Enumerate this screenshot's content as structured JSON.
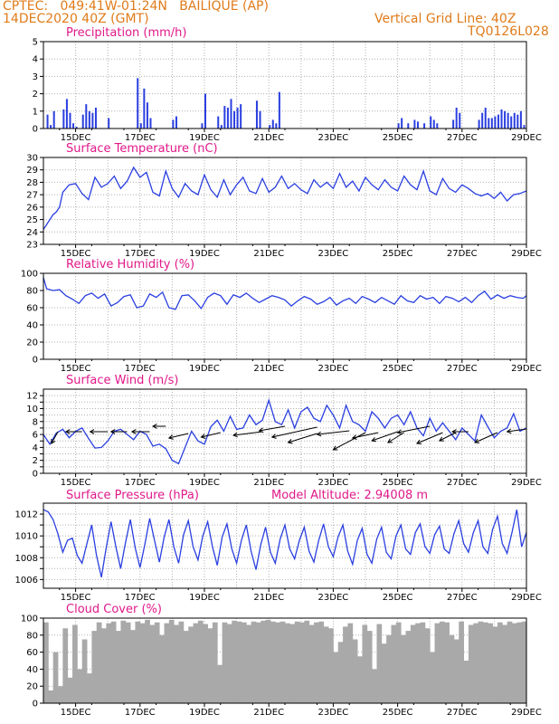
{
  "header": {
    "station": "CPTEC:   049:41W-01:24N   BAILIQUE (AP)",
    "date": "14DEC2020 40Z (GMT)",
    "grid_line": "Vertical Grid Line: 40Z",
    "code": "TQ0126L028"
  },
  "colors": {
    "header": "#e07b1a",
    "title": "#e0198a",
    "line": "#2a3fe0",
    "bar": "#2a3fe0",
    "cloud": "#a9a9a9"
  },
  "chart_data": [
    {
      "id": "precip",
      "type": "bar",
      "title": "Precipitation (mm/h)",
      "xlabel": "",
      "ylabel": "",
      "ylim": [
        0,
        5
      ],
      "yticks": [
        0,
        1,
        2,
        3,
        4,
        5
      ],
      "xticks": [
        "15DEC",
        "17DEC",
        "19DEC",
        "21DEC",
        "23DEC",
        "25DEC",
        "27DEC",
        "29DEC"
      ],
      "xrange": [
        14.0,
        29.0
      ],
      "grid": true,
      "x": [
        14.1,
        14.2,
        14.3,
        14.6,
        14.7,
        14.8,
        14.9,
        15.0,
        15.2,
        15.3,
        15.4,
        15.5,
        15.6,
        16.0,
        16.9,
        17.0,
        17.1,
        17.2,
        17.3,
        18.0,
        18.1,
        18.9,
        19.0,
        19.4,
        19.5,
        19.6,
        19.7,
        19.8,
        19.9,
        20.0,
        20.1,
        20.6,
        20.7,
        21.0,
        21.1,
        21.2,
        21.3,
        25.0,
        25.1,
        25.3,
        25.5,
        25.6,
        25.8,
        26.0,
        26.1,
        26.2,
        26.7,
        26.8,
        26.9,
        27.5,
        27.6,
        27.7,
        27.8,
        27.9,
        28.0,
        28.1,
        28.2,
        28.3,
        28.4,
        28.5,
        28.6,
        28.7,
        28.8,
        28.9
      ],
      "values": [
        0.8,
        0.2,
        1.0,
        1.1,
        1.7,
        0.9,
        0.3,
        0.1,
        0.8,
        1.4,
        1.0,
        0.9,
        1.2,
        0.6,
        2.9,
        0.3,
        2.3,
        1.5,
        0.6,
        0.5,
        0.7,
        0.3,
        2.0,
        0.7,
        0.2,
        1.3,
        1.2,
        1.7,
        1.0,
        1.2,
        1.4,
        1.6,
        1.0,
        0.2,
        0.5,
        0.3,
        2.1,
        0.3,
        0.6,
        0.3,
        0.5,
        0.4,
        0.3,
        0.7,
        0.5,
        0.3,
        0.5,
        1.2,
        0.9,
        0.5,
        0.9,
        1.2,
        0.6,
        0.6,
        0.7,
        0.8,
        1.1,
        1.0,
        0.9,
        0.7,
        0.9,
        0.8,
        1.0,
        0.2
      ]
    },
    {
      "id": "temp",
      "type": "line",
      "title": "Surface Temperature (nC)",
      "xlabel": "",
      "ylabel": "",
      "ylim": [
        23,
        30
      ],
      "yticks": [
        23,
        24,
        25,
        26,
        27,
        28,
        29,
        30
      ],
      "xticks": [
        "15DEC",
        "17DEC",
        "19DEC",
        "21DEC",
        "23DEC",
        "25DEC",
        "27DEC",
        "29DEC"
      ],
      "xrange": [
        14.0,
        29.0
      ],
      "grid": true,
      "x": [
        14.0,
        14.1,
        14.2,
        14.3,
        14.4,
        14.5,
        14.6,
        14.8,
        15.0,
        15.2,
        15.4,
        15.6,
        15.8,
        16.0,
        16.2,
        16.4,
        16.6,
        16.8,
        17.0,
        17.2,
        17.4,
        17.6,
        17.8,
        18.0,
        18.2,
        18.4,
        18.6,
        18.8,
        19.0,
        19.2,
        19.4,
        19.6,
        19.8,
        20.0,
        20.2,
        20.4,
        20.6,
        20.8,
        21.0,
        21.2,
        21.4,
        21.6,
        21.8,
        22.0,
        22.2,
        22.4,
        22.6,
        22.8,
        23.0,
        23.2,
        23.4,
        23.6,
        23.8,
        24.0,
        24.2,
        24.4,
        24.6,
        24.8,
        25.0,
        25.2,
        25.4,
        25.6,
        25.8,
        26.0,
        26.2,
        26.4,
        26.6,
        26.8,
        27.0,
        27.2,
        27.4,
        27.6,
        27.8,
        28.0,
        28.2,
        28.4,
        28.6,
        28.8,
        29.0
      ],
      "values": [
        24.2,
        24.6,
        25.0,
        25.4,
        25.6,
        26.0,
        27.2,
        27.8,
        27.9,
        27.1,
        26.6,
        28.4,
        27.6,
        27.9,
        28.5,
        27.5,
        28.1,
        29.2,
        28.4,
        28.8,
        27.2,
        26.9,
        28.9,
        27.5,
        26.8,
        27.9,
        27.3,
        27.0,
        28.6,
        27.4,
        26.8,
        28.2,
        27.0,
        27.8,
        28.4,
        27.3,
        27.1,
        28.3,
        27.2,
        27.6,
        28.5,
        27.5,
        27.9,
        27.4,
        27.1,
        28.2,
        27.6,
        28.0,
        27.5,
        28.7,
        27.6,
        28.1,
        27.3,
        28.4,
        27.8,
        27.4,
        28.2,
        27.6,
        27.3,
        28.5,
        27.8,
        27.4,
        28.9,
        27.3,
        27.0,
        28.3,
        27.5,
        27.2,
        27.8,
        27.5,
        27.1,
        26.9,
        27.1,
        26.7,
        27.2,
        26.5,
        27.0,
        27.1,
        27.3
      ]
    },
    {
      "id": "rh",
      "type": "line",
      "title": "Relative Humidity (%)",
      "xlabel": "",
      "ylabel": "",
      "ylim": [
        0,
        100
      ],
      "yticks": [
        0,
        20,
        40,
        60,
        80,
        100
      ],
      "xticks": [
        "15DEC",
        "17DEC",
        "19DEC",
        "21DEC",
        "23DEC",
        "25DEC",
        "27DEC",
        "29DEC"
      ],
      "xrange": [
        14.0,
        29.0
      ],
      "grid": true,
      "x": [
        14.0,
        14.1,
        14.3,
        14.5,
        14.7,
        14.9,
        15.1,
        15.3,
        15.5,
        15.7,
        15.9,
        16.1,
        16.3,
        16.5,
        16.7,
        16.9,
        17.1,
        17.3,
        17.5,
        17.7,
        17.9,
        18.1,
        18.3,
        18.5,
        18.7,
        18.9,
        19.1,
        19.3,
        19.5,
        19.7,
        19.9,
        20.1,
        20.3,
        20.5,
        20.7,
        20.9,
        21.1,
        21.3,
        21.5,
        21.7,
        21.9,
        22.1,
        22.3,
        22.5,
        22.7,
        22.9,
        23.1,
        23.3,
        23.5,
        23.7,
        23.9,
        24.1,
        24.3,
        24.5,
        24.7,
        24.9,
        25.1,
        25.3,
        25.5,
        25.7,
        25.9,
        26.1,
        26.3,
        26.5,
        26.7,
        26.9,
        27.1,
        27.3,
        27.5,
        27.7,
        27.9,
        28.1,
        28.3,
        28.5,
        28.7,
        28.9,
        29.0
      ],
      "values": [
        95,
        82,
        80,
        81,
        74,
        70,
        65,
        74,
        77,
        71,
        76,
        62,
        66,
        73,
        75,
        60,
        62,
        76,
        72,
        78,
        60,
        58,
        74,
        75,
        68,
        59,
        72,
        77,
        74,
        64,
        75,
        72,
        77,
        71,
        66,
        70,
        74,
        72,
        69,
        62,
        68,
        73,
        70,
        64,
        67,
        72,
        63,
        68,
        71,
        65,
        73,
        70,
        66,
        72,
        68,
        64,
        74,
        68,
        66,
        74,
        70,
        72,
        65,
        73,
        71,
        67,
        72,
        66,
        74,
        79,
        70,
        75,
        71,
        74,
        72,
        71,
        74
      ]
    },
    {
      "id": "wind",
      "type": "line",
      "title": "Surface Wind (m/s)",
      "xlabel": "",
      "ylabel": "",
      "ylim": [
        0,
        13
      ],
      "yticks": [
        0,
        1,
        2,
        3,
        4,
        5,
        6,
        7,
        8,
        9,
        10,
        11,
        12
      ],
      "ytick_labels": [
        "0",
        "",
        "2",
        "",
        "4",
        "",
        "6",
        "",
        "8",
        "",
        "10",
        "",
        "12"
      ],
      "xticks": [
        "15DEC",
        "17DEC",
        "19DEC",
        "21DEC",
        "23DEC",
        "25DEC",
        "27DEC",
        "29DEC"
      ],
      "xrange": [
        14.0,
        29.0
      ],
      "grid": true,
      "x": [
        14.0,
        14.2,
        14.4,
        14.6,
        14.8,
        15.0,
        15.2,
        15.4,
        15.6,
        15.8,
        16.0,
        16.2,
        16.4,
        16.6,
        16.8,
        17.0,
        17.2,
        17.4,
        17.6,
        17.8,
        18.0,
        18.2,
        18.4,
        18.6,
        18.8,
        19.0,
        19.2,
        19.4,
        19.6,
        19.8,
        20.0,
        20.2,
        20.4,
        20.6,
        20.8,
        21.0,
        21.2,
        21.4,
        21.6,
        21.8,
        22.0,
        22.2,
        22.4,
        22.6,
        22.8,
        23.0,
        23.2,
        23.4,
        23.6,
        23.8,
        24.0,
        24.2,
        24.4,
        24.6,
        24.8,
        25.0,
        25.2,
        25.4,
        25.6,
        25.8,
        26.0,
        26.2,
        26.4,
        26.6,
        26.8,
        27.0,
        27.2,
        27.4,
        27.6,
        27.8,
        28.0,
        28.2,
        28.4,
        28.6,
        28.8,
        29.0
      ],
      "values": [
        6.0,
        4.5,
        6.2,
        6.8,
        5.5,
        6.5,
        7.0,
        5.4,
        3.9,
        4.0,
        5.0,
        6.5,
        6.8,
        6.0,
        5.2,
        6.5,
        6.0,
        4.2,
        4.5,
        3.8,
        2.0,
        1.5,
        4.0,
        6.5,
        5.0,
        4.5,
        7.2,
        8.2,
        6.5,
        8.8,
        6.8,
        7.0,
        9.0,
        7.5,
        8.2,
        11.3,
        8.0,
        7.5,
        9.8,
        7.0,
        9.5,
        10.2,
        8.5,
        8.0,
        10.5,
        9.0,
        7.0,
        10.5,
        8.0,
        7.5,
        6.5,
        9.5,
        8.5,
        7.0,
        8.5,
        9.0,
        7.5,
        9.5,
        7.0,
        5.8,
        8.5,
        6.5,
        7.8,
        6.5,
        5.2,
        7.0,
        6.0,
        5.0,
        9.0,
        7.2,
        5.5,
        6.5,
        7.0,
        9.2,
        6.5,
        7.0
      ],
      "arrows_label": "wind direction vectors"
    },
    {
      "id": "pressure",
      "type": "line",
      "title": "Surface Pressure (hPa)",
      "annotation": "Model Altitude: 2.94008 m",
      "xlabel": "",
      "ylabel": "",
      "ylim": [
        1005.2,
        1013.0
      ],
      "yticks": [
        1006,
        1007,
        1008,
        1009,
        1010,
        1011,
        1012
      ],
      "ytick_labels": [
        "1006",
        "",
        "1008",
        "",
        "1010",
        "",
        "1012"
      ],
      "xticks": [
        "15DEC",
        "17DEC",
        "19DEC",
        "21DEC",
        "23DEC",
        "25DEC",
        "27DEC",
        "29DEC"
      ],
      "xrange": [
        14.0,
        29.0
      ],
      "grid": true,
      "x": [
        14.0,
        14.15,
        14.3,
        14.45,
        14.6,
        14.75,
        14.9,
        15.05,
        15.2,
        15.35,
        15.5,
        15.65,
        15.8,
        15.95,
        16.1,
        16.25,
        16.4,
        16.55,
        16.7,
        16.85,
        17.0,
        17.15,
        17.3,
        17.45,
        17.6,
        17.75,
        17.9,
        18.05,
        18.2,
        18.35,
        18.5,
        18.65,
        18.8,
        18.95,
        19.1,
        19.25,
        19.4,
        19.55,
        19.7,
        19.85,
        20.0,
        20.15,
        20.3,
        20.45,
        20.6,
        20.75,
        20.9,
        21.05,
        21.2,
        21.35,
        21.5,
        21.65,
        21.8,
        21.95,
        22.1,
        22.25,
        22.4,
        22.55,
        22.7,
        22.85,
        23.0,
        23.15,
        23.3,
        23.45,
        23.6,
        23.75,
        23.9,
        24.05,
        24.2,
        24.35,
        24.5,
        24.65,
        24.8,
        24.95,
        25.1,
        25.25,
        25.4,
        25.55,
        25.7,
        25.85,
        26.0,
        26.15,
        26.3,
        26.45,
        26.6,
        26.75,
        26.9,
        27.05,
        27.2,
        27.35,
        27.5,
        27.65,
        27.8,
        27.95,
        28.1,
        28.25,
        28.4,
        28.55,
        28.7,
        28.85,
        29.0
      ],
      "values": [
        1012.4,
        1012.2,
        1011.5,
        1010.2,
        1008.5,
        1009.6,
        1009.8,
        1008.2,
        1007.5,
        1009.3,
        1011.0,
        1008.2,
        1006.2,
        1008.9,
        1011.3,
        1009.0,
        1007.0,
        1009.4,
        1011.5,
        1008.9,
        1007.1,
        1009.2,
        1011.6,
        1009.6,
        1007.6,
        1009.9,
        1011.5,
        1009.0,
        1007.5,
        1010.1,
        1011.4,
        1009.0,
        1007.8,
        1010.0,
        1011.3,
        1009.0,
        1007.3,
        1009.9,
        1011.1,
        1008.8,
        1007.5,
        1009.6,
        1011.0,
        1008.6,
        1006.9,
        1009.2,
        1010.8,
        1008.5,
        1007.5,
        1009.7,
        1011.0,
        1008.8,
        1007.9,
        1009.6,
        1010.8,
        1008.6,
        1007.6,
        1009.6,
        1011.1,
        1009.0,
        1008.1,
        1009.9,
        1011.0,
        1008.6,
        1007.4,
        1009.6,
        1010.7,
        1008.3,
        1007.5,
        1009.7,
        1010.8,
        1008.5,
        1007.9,
        1010.0,
        1011.0,
        1008.8,
        1008.3,
        1010.3,
        1011.1,
        1009.0,
        1008.4,
        1010.1,
        1010.9,
        1008.8,
        1008.4,
        1010.2,
        1011.4,
        1009.3,
        1008.5,
        1010.3,
        1011.4,
        1009.0,
        1008.4,
        1010.6,
        1011.8,
        1009.3,
        1008.4,
        1010.3,
        1012.4,
        1009.0,
        1010.3
      ]
    },
    {
      "id": "cloud",
      "type": "bar",
      "title": "Cloud Cover (%)",
      "xlabel": "",
      "ylabel": "",
      "ylim": [
        0,
        100
      ],
      "yticks": [
        0,
        20,
        40,
        60,
        80,
        100
      ],
      "xticks": [
        "15DEC",
        "17DEC",
        "19DEC",
        "21DEC",
        "23DEC",
        "25DEC",
        "27DEC",
        "29DEC"
      ],
      "xrange": [
        14.0,
        29.0
      ],
      "grid": true,
      "x": [
        14.0,
        14.15,
        14.3,
        14.45,
        14.6,
        14.75,
        14.9,
        15.05,
        15.2,
        15.35,
        15.5,
        15.65,
        15.8,
        15.95,
        16.1,
        16.25,
        16.4,
        16.55,
        16.7,
        16.85,
        17.0,
        17.15,
        17.3,
        17.45,
        17.6,
        17.75,
        17.9,
        18.05,
        18.2,
        18.35,
        18.5,
        18.65,
        18.8,
        18.95,
        19.1,
        19.25,
        19.4,
        19.55,
        19.7,
        19.85,
        20.0,
        20.15,
        20.3,
        20.45,
        20.6,
        20.75,
        20.9,
        21.05,
        21.2,
        21.35,
        21.5,
        21.65,
        21.8,
        21.95,
        22.1,
        22.25,
        22.4,
        22.55,
        22.7,
        22.85,
        23.0,
        23.15,
        23.3,
        23.45,
        23.6,
        23.75,
        23.9,
        24.05,
        24.2,
        24.35,
        24.5,
        24.65,
        24.8,
        24.95,
        25.1,
        25.25,
        25.4,
        25.55,
        25.7,
        25.85,
        26.0,
        26.15,
        26.3,
        26.45,
        26.6,
        26.75,
        26.9,
        27.05,
        27.2,
        27.35,
        27.5,
        27.65,
        27.8,
        27.95,
        28.1,
        28.25,
        28.4,
        28.55,
        28.7,
        28.85
      ],
      "values": [
        95,
        15,
        60,
        20,
        88,
        30,
        92,
        40,
        75,
        35,
        85,
        95,
        88,
        94,
        96,
        85,
        97,
        95,
        86,
        96,
        94,
        98,
        92,
        95,
        80,
        94,
        98,
        92,
        96,
        85,
        90,
        94,
        97,
        93,
        88,
        95,
        45,
        95,
        93,
        97,
        96,
        95,
        92,
        96,
        95,
        97,
        98,
        96,
        95,
        96,
        94,
        93,
        96,
        95,
        97,
        92,
        95,
        96,
        90,
        88,
        60,
        72,
        90,
        94,
        75,
        55,
        92,
        85,
        40,
        93,
        70,
        80,
        92,
        95,
        80,
        85,
        92,
        94,
        95,
        88,
        60,
        94,
        96,
        95,
        80,
        75,
        96,
        50,
        92,
        94,
        96,
        95,
        94,
        90,
        95,
        92,
        96,
        94,
        95,
        96
      ]
    }
  ]
}
